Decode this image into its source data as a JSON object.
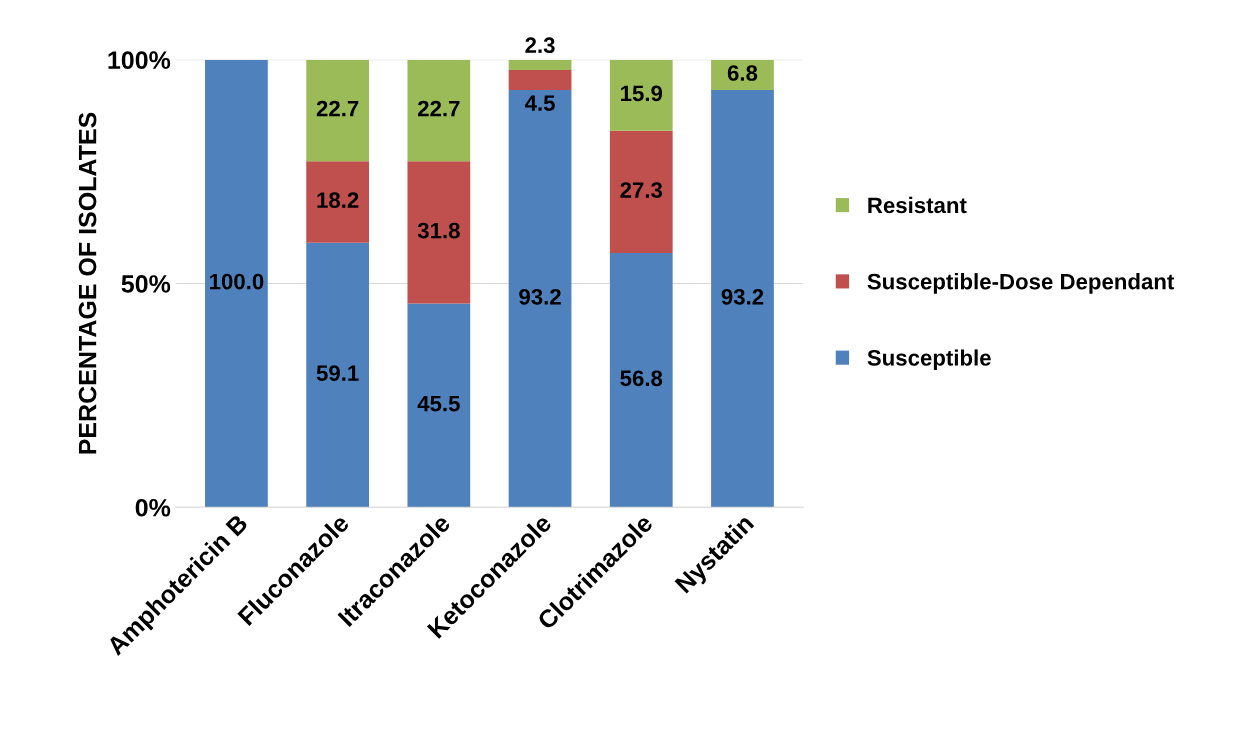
{
  "chart_data": {
    "type": "bar",
    "stacked": true,
    "ylabel": "PERCENTAGE OF ISOLATES",
    "categories": [
      "Amphotericin B",
      "Fluconazole",
      "Itraconazole",
      "Ketoconazole",
      "Clotrimazole",
      "Nystatin"
    ],
    "series": [
      {
        "name": "Susceptible",
        "color": "#4f81bd",
        "values": [
          100.0,
          59.1,
          45.5,
          93.2,
          56.8,
          93.2
        ],
        "value_labels": [
          "100.0",
          "59.1",
          "45.5",
          "93.2",
          "56.8",
          "93.2"
        ]
      },
      {
        "name": "Susceptible-Dose Dependant",
        "color": "#c0504d",
        "values": [
          0,
          18.2,
          31.8,
          4.5,
          27.3,
          0
        ],
        "value_labels": [
          null,
          "18.2",
          "31.8",
          "4.5",
          "27.3",
          null
        ]
      },
      {
        "name": "Resistant",
        "color": "#9bbb59",
        "values": [
          0,
          22.7,
          22.7,
          2.3,
          15.9,
          6.8
        ],
        "value_labels": [
          null,
          "22.7",
          "22.7",
          "2.3",
          "15.9",
          "6.8"
        ]
      }
    ],
    "ylim": [
      0,
      100
    ],
    "yticks": [
      {
        "value": 0,
        "label": "0%"
      },
      {
        "value": 50,
        "label": "50%"
      },
      {
        "value": 100,
        "label": "100%"
      }
    ],
    "grid": "y",
    "legend": "right"
  }
}
